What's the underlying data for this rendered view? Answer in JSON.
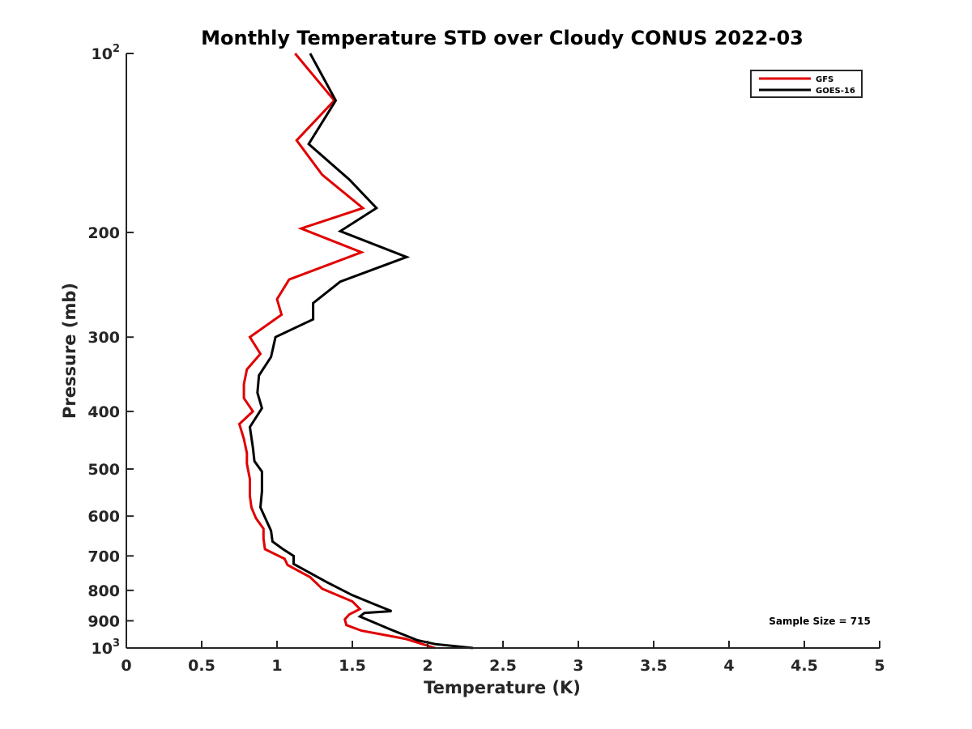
{
  "chart_data": {
    "type": "line",
    "title": "Monthly Temperature STD over Cloudy CONUS  2022-03",
    "xlabel": "Temperature (K)",
    "ylabel": "Pressure (mb)",
    "xlim": [
      0,
      5
    ],
    "ylim": [
      100,
      1000
    ],
    "y_scale": "log",
    "y_reversed": true,
    "grid": false,
    "legend_position": "top-right",
    "x_ticks": [
      0,
      0.5,
      1,
      1.5,
      2,
      2.5,
      3,
      3.5,
      4,
      4.5,
      5
    ],
    "x_tick_labels": [
      "0",
      "0.5",
      "1",
      "1.5",
      "2",
      "2.5",
      "3",
      "3.5",
      "4",
      "4.5",
      "5"
    ],
    "y_ticks": [
      {
        "value": 100,
        "label": "10",
        "sup": "2"
      },
      {
        "value": 200,
        "label": "200",
        "sup": ""
      },
      {
        "value": 300,
        "label": "300",
        "sup": ""
      },
      {
        "value": 400,
        "label": "400",
        "sup": ""
      },
      {
        "value": 500,
        "label": "500",
        "sup": ""
      },
      {
        "value": 600,
        "label": "600",
        "sup": ""
      },
      {
        "value": 700,
        "label": "700",
        "sup": ""
      },
      {
        "value": 800,
        "label": "800",
        "sup": ""
      },
      {
        "value": 900,
        "label": "900",
        "sup": ""
      },
      {
        "value": 1000,
        "label": "10",
        "sup": "3"
      }
    ],
    "annotation": "Sample Size = 715",
    "series": [
      {
        "name": "GFS",
        "color": "#e00000",
        "points": [
          [
            1.12,
            100
          ],
          [
            1.38,
            120
          ],
          [
            1.13,
            140
          ],
          [
            1.3,
            160
          ],
          [
            1.57,
            182
          ],
          [
            1.16,
            197
          ],
          [
            1.56,
            216
          ],
          [
            1.08,
            240
          ],
          [
            1.0,
            259
          ],
          [
            1.03,
            275
          ],
          [
            0.82,
            300
          ],
          [
            0.89,
            320
          ],
          [
            0.8,
            340
          ],
          [
            0.78,
            360
          ],
          [
            0.78,
            380
          ],
          [
            0.84,
            400
          ],
          [
            0.75,
            420
          ],
          [
            0.78,
            445
          ],
          [
            0.8,
            470
          ],
          [
            0.8,
            490
          ],
          [
            0.82,
            520
          ],
          [
            0.82,
            555
          ],
          [
            0.83,
            580
          ],
          [
            0.86,
            605
          ],
          [
            0.91,
            630
          ],
          [
            0.91,
            655
          ],
          [
            0.92,
            682
          ],
          [
            1.05,
            708
          ],
          [
            1.07,
            725
          ],
          [
            1.22,
            760
          ],
          [
            1.3,
            795
          ],
          [
            1.5,
            835
          ],
          [
            1.55,
            860
          ],
          [
            1.48,
            878
          ],
          [
            1.45,
            895
          ],
          [
            1.46,
            915
          ],
          [
            1.56,
            935
          ],
          [
            1.85,
            965
          ],
          [
            2.05,
            1000
          ]
        ]
      },
      {
        "name": "GOES-16",
        "color": "#000000",
        "points": [
          [
            1.22,
            100
          ],
          [
            1.39,
            120
          ],
          [
            1.21,
            142
          ],
          [
            1.48,
            163
          ],
          [
            1.66,
            182
          ],
          [
            1.42,
            199
          ],
          [
            1.86,
            220
          ],
          [
            1.42,
            242
          ],
          [
            1.24,
            263
          ],
          [
            1.24,
            280
          ],
          [
            0.99,
            300
          ],
          [
            0.96,
            324
          ],
          [
            0.88,
            348
          ],
          [
            0.87,
            372
          ],
          [
            0.9,
            395
          ],
          [
            0.82,
            425
          ],
          [
            0.84,
            460
          ],
          [
            0.85,
            485
          ],
          [
            0.9,
            505
          ],
          [
            0.9,
            545
          ],
          [
            0.89,
            580
          ],
          [
            0.92,
            603
          ],
          [
            0.96,
            635
          ],
          [
            0.97,
            662
          ],
          [
            1.04,
            682
          ],
          [
            1.11,
            700
          ],
          [
            1.11,
            722
          ],
          [
            1.33,
            775
          ],
          [
            1.5,
            815
          ],
          [
            1.65,
            845
          ],
          [
            1.76,
            867
          ],
          [
            1.58,
            873
          ],
          [
            1.55,
            885
          ],
          [
            1.75,
            930
          ],
          [
            1.93,
            970
          ],
          [
            2.05,
            985
          ],
          [
            2.3,
            1000
          ]
        ]
      }
    ]
  }
}
